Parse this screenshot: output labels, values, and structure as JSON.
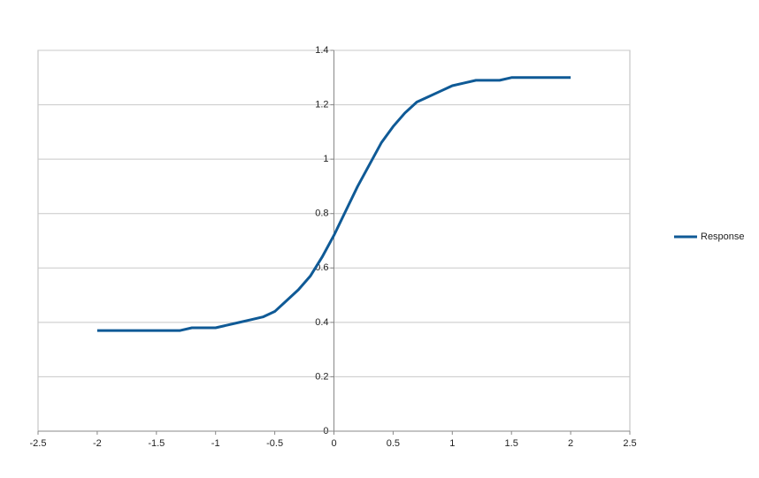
{
  "chart_data": {
    "type": "line",
    "x": [
      -2,
      -1.9,
      -1.8,
      -1.7,
      -1.6,
      -1.5,
      -1.4,
      -1.3,
      -1.2,
      -1.1,
      -1,
      -0.9,
      -0.8,
      -0.7,
      -0.6,
      -0.5,
      -0.4,
      -0.3,
      -0.2,
      -0.1,
      0,
      0.1,
      0.2,
      0.3,
      0.4,
      0.5,
      0.6,
      0.7,
      0.8,
      0.9,
      1,
      1.1,
      1.2,
      1.3,
      1.4,
      1.5,
      1.6,
      1.7,
      1.8,
      1.9,
      2
    ],
    "series": [
      {
        "name": "Response",
        "color": "#0f5a96",
        "values": [
          0.37,
          0.37,
          0.37,
          0.37,
          0.37,
          0.37,
          0.37,
          0.37,
          0.38,
          0.38,
          0.38,
          0.39,
          0.4,
          0.41,
          0.42,
          0.44,
          0.48,
          0.52,
          0.57,
          0.64,
          0.72,
          0.81,
          0.9,
          0.98,
          1.06,
          1.12,
          1.17,
          1.21,
          1.23,
          1.25,
          1.27,
          1.28,
          1.29,
          1.29,
          1.29,
          1.3,
          1.3,
          1.3,
          1.3,
          1.3,
          1.3
        ]
      }
    ],
    "xlim": [
      -2.5,
      2.5
    ],
    "xticks": [
      -2.5,
      -2,
      -1.5,
      -1,
      -0.5,
      0,
      0.5,
      1,
      1.5,
      2,
      2.5
    ],
    "ylim": [
      0,
      1.4
    ],
    "yticks": [
      0,
      0.2,
      0.4,
      0.6,
      0.8,
      1,
      1.2,
      1.4
    ],
    "grid": true,
    "legend": "right"
  }
}
